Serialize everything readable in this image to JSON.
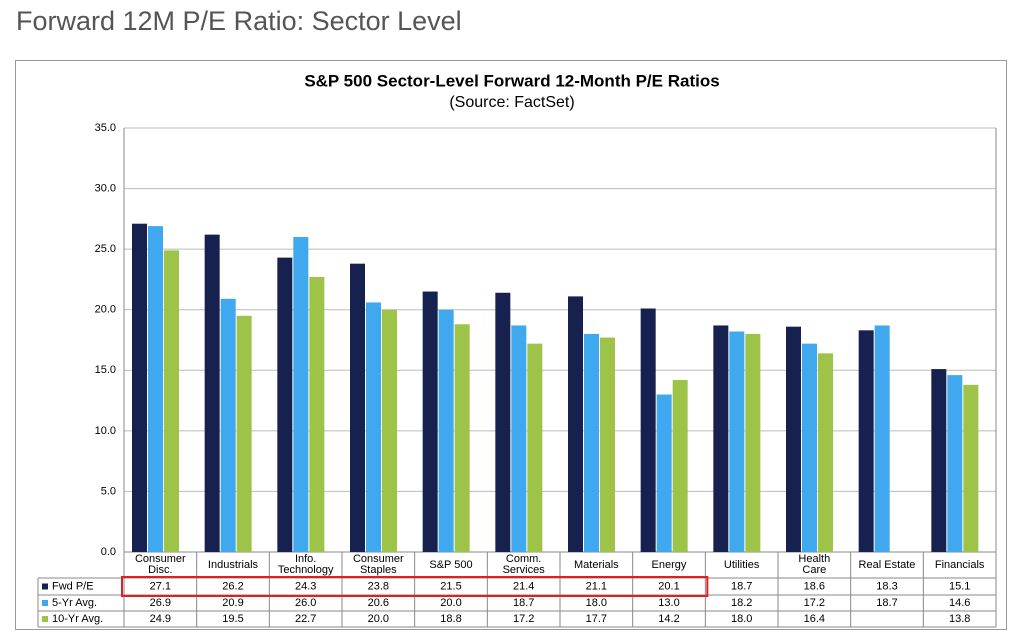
{
  "header": {
    "title": "Forward 12M P/E Ratio: Sector Level"
  },
  "chart_data": {
    "type": "bar",
    "title": "S&P 500 Sector-Level Forward 12-Month P/E Ratios",
    "subtitle": "(Source: FactSet)",
    "categories": [
      "Consumer\nDisc.",
      "Industrials",
      "Info.\nTechnology",
      "Consumer\nStaples",
      "S&P 500",
      "Comm.\nServices",
      "Materials",
      "Energy",
      "Utilities",
      "Health\nCare",
      "Real Estate",
      "Financials"
    ],
    "series": [
      {
        "name": "Fwd P/E",
        "color": "#16214f",
        "values": [
          27.1,
          26.2,
          24.3,
          23.8,
          21.5,
          21.4,
          21.1,
          20.1,
          18.7,
          18.6,
          18.3,
          15.1
        ],
        "value_labels": [
          "27.1",
          "26.2",
          "24.3",
          "23.8",
          "21.5",
          "21.4",
          "21.1",
          "20.1",
          "18.7",
          "18.6",
          "18.3",
          "15.1"
        ]
      },
      {
        "name": "5-Yr Avg.",
        "color": "#3fa8ee",
        "values": [
          26.9,
          20.9,
          26.0,
          20.6,
          20.0,
          18.7,
          18.0,
          13.0,
          18.2,
          17.2,
          18.7,
          14.6
        ],
        "value_labels": [
          "26.9",
          "20.9",
          "26.0",
          "20.6",
          "20.0",
          "18.7",
          "18.0",
          "13.0",
          "18.2",
          "17.2",
          "18.7",
          "14.6"
        ]
      },
      {
        "name": "10-Yr Avg.",
        "color": "#9dc449",
        "values": [
          24.9,
          19.5,
          22.7,
          20.0,
          18.8,
          17.2,
          17.7,
          14.2,
          18.0,
          16.4,
          null,
          13.8
        ],
        "value_labels": [
          "24.9",
          "19.5",
          "22.7",
          "20.0",
          "18.8",
          "17.2",
          "17.7",
          "14.2",
          "18.0",
          "16.4",
          null,
          "13.8"
        ]
      }
    ],
    "ylim": [
      0,
      35
    ],
    "yticks": [
      {
        "value": 0,
        "label": "0.0"
      },
      {
        "value": 5,
        "label": "5.0"
      },
      {
        "value": 10,
        "label": "10.0"
      },
      {
        "value": 15,
        "label": "15.0"
      },
      {
        "value": 20,
        "label": "20.0"
      },
      {
        "value": 25,
        "label": "25.0"
      },
      {
        "value": 30,
        "label": "30.0"
      },
      {
        "value": 35,
        "label": "35.0"
      }
    ],
    "grid": true
  }
}
